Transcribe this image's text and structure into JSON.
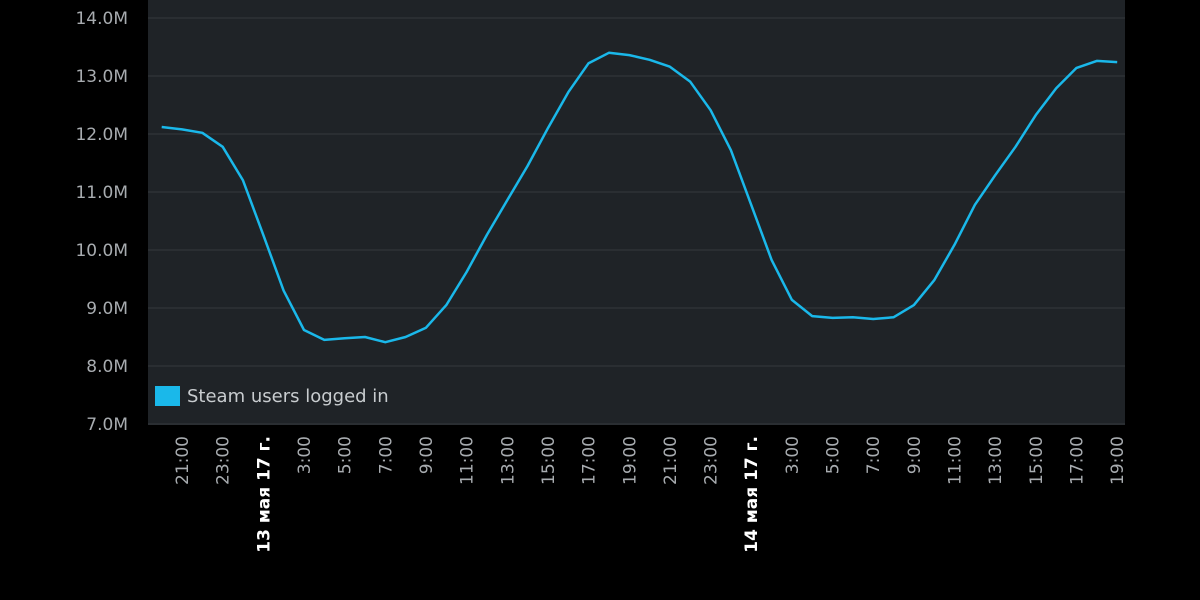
{
  "chart_data": {
    "type": "line",
    "categories": [
      null,
      "21:00",
      null,
      "23:00",
      null,
      "13 мая 17 г.",
      null,
      "3:00",
      null,
      "5:00",
      null,
      "7:00",
      null,
      "9:00",
      null,
      "11:00",
      null,
      "13:00",
      null,
      "15:00",
      null,
      "17:00",
      null,
      "19:00",
      null,
      "21:00",
      null,
      "23:00",
      null,
      "14 мая 17 г.",
      null,
      "3:00",
      null,
      "5:00",
      null,
      "7:00",
      null,
      "9:00",
      null,
      "11:00",
      null,
      "13:00",
      null,
      "15:00",
      null,
      "17:00",
      null,
      "19:00"
    ],
    "series": [
      {
        "name": "Steam users logged in",
        "color": "#1ab8ea",
        "values": [
          12.12,
          12.08,
          12.02,
          11.78,
          11.2,
          10.26,
          9.3,
          8.62,
          8.45,
          8.48,
          8.5,
          8.41,
          8.5,
          8.66,
          9.05,
          9.62,
          10.26,
          10.86,
          11.45,
          12.1,
          12.72,
          13.22,
          13.4,
          13.36,
          13.28,
          13.16,
          12.9,
          12.41,
          11.72,
          10.78,
          9.83,
          9.14,
          8.86,
          8.83,
          8.84,
          8.81,
          8.84,
          9.05,
          9.48,
          10.09,
          10.78,
          11.29,
          11.78,
          12.33,
          12.79,
          13.14,
          13.26,
          13.24
        ]
      }
    ],
    "ylim": [
      7,
      14
    ],
    "yticks": [
      {
        "value": 7,
        "label": "7.0M"
      },
      {
        "value": 8,
        "label": "8.0M"
      },
      {
        "value": 9,
        "label": "9.0M"
      },
      {
        "value": 10,
        "label": "10.0M"
      },
      {
        "value": 11,
        "label": "11.0M"
      },
      {
        "value": 12,
        "label": "12.0M"
      },
      {
        "value": 13,
        "label": "13.0M"
      },
      {
        "value": 14,
        "label": "14.0M"
      }
    ],
    "grid": true,
    "legend": "lower-left"
  }
}
